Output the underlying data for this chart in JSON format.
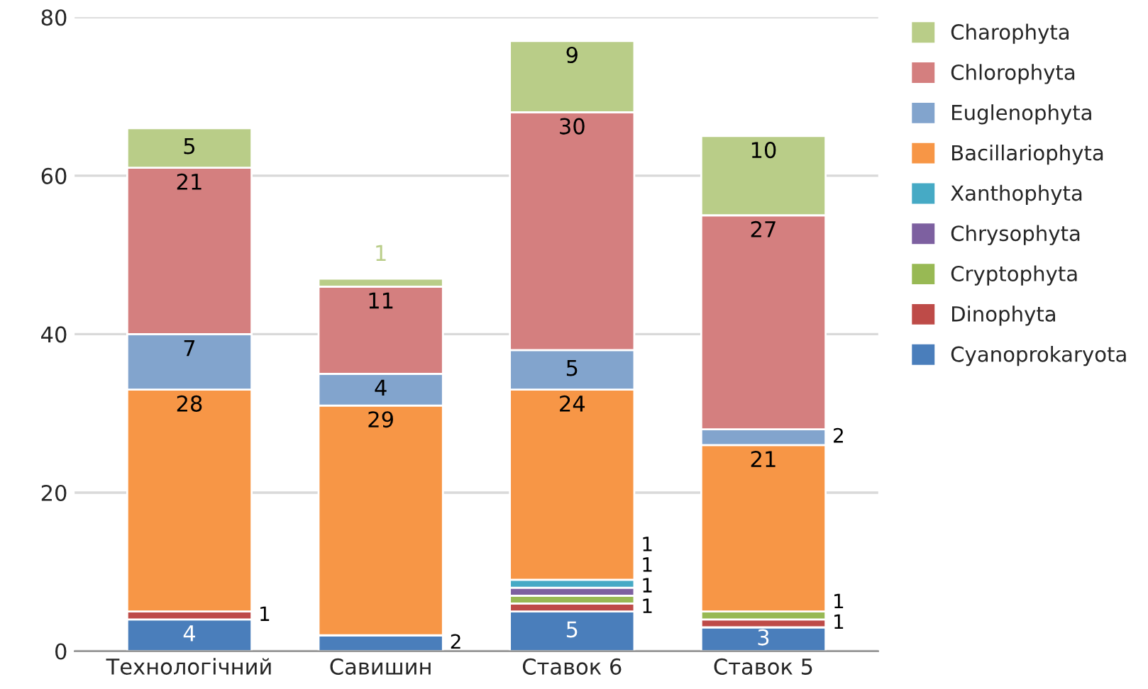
{
  "chart_data": {
    "type": "bar",
    "stacked": true,
    "categories": [
      "Технологічний",
      "Савишин",
      "Ставок 6",
      "Ставок 5"
    ],
    "series": [
      {
        "name": "Cyanoprokaryota",
        "color": "#4a7ebb",
        "values": [
          4,
          2,
          5,
          3
        ],
        "value_labels": [
          "4",
          "2",
          "5",
          "3"
        ]
      },
      {
        "name": "Dinophyta",
        "color": "#be4b48",
        "values": [
          1,
          0,
          1,
          1
        ],
        "value_labels": [
          "1",
          null,
          "1",
          "1"
        ]
      },
      {
        "name": "Cryptophyta",
        "color": "#98b954",
        "values": [
          0,
          0,
          1,
          1
        ],
        "value_labels": [
          null,
          null,
          "1",
          "1"
        ]
      },
      {
        "name": "Chrysophyta",
        "color": "#7d60a0",
        "values": [
          0,
          0,
          1,
          0
        ],
        "value_labels": [
          null,
          null,
          "1",
          null
        ]
      },
      {
        "name": "Xanthophyta",
        "color": "#46aac5",
        "values": [
          0,
          0,
          1,
          0
        ],
        "value_labels": [
          null,
          null,
          "1",
          null
        ]
      },
      {
        "name": "Bacillariophyta",
        "color": "#f79646",
        "values": [
          28,
          29,
          24,
          21
        ],
        "value_labels": [
          "28",
          "29",
          "24",
          "21"
        ]
      },
      {
        "name": "Euglenophyta",
        "color": "#82a4cd",
        "values": [
          7,
          4,
          5,
          2
        ],
        "value_labels": [
          "7",
          "4",
          "5",
          "2"
        ]
      },
      {
        "name": "Chlorophyta",
        "color": "#d47f7f",
        "values": [
          21,
          11,
          30,
          27
        ],
        "value_labels": [
          "21",
          "11",
          "30",
          "27"
        ]
      },
      {
        "name": "Charophyta",
        "color": "#b9cd88",
        "values": [
          5,
          1,
          9,
          10
        ],
        "value_labels": [
          "5",
          "1",
          "9",
          "10"
        ]
      }
    ],
    "ylim": [
      0,
      80
    ],
    "yticks": [
      0,
      20,
      40,
      60,
      80
    ],
    "grid": "y",
    "legend": "right"
  }
}
